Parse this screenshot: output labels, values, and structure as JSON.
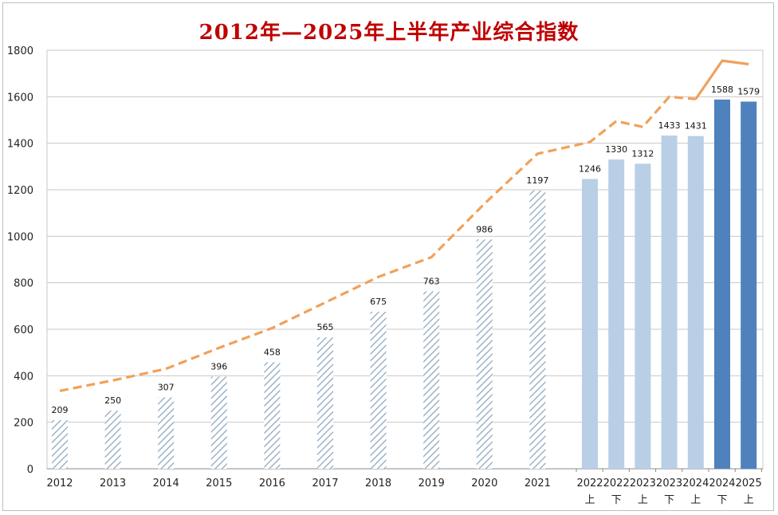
{
  "chart_data": {
    "type": "bar",
    "title": "2012年—2025年上半年产业综合指数",
    "ylim": [
      0,
      1800
    ],
    "y_ticks": [
      0,
      200,
      400,
      600,
      800,
      1000,
      1200,
      1400,
      1600,
      1800
    ],
    "grid": true,
    "categories": [
      {
        "year": "2012",
        "half": ""
      },
      {
        "year": "2013",
        "half": ""
      },
      {
        "year": "2014",
        "half": ""
      },
      {
        "year": "2015",
        "half": ""
      },
      {
        "year": "2016",
        "half": ""
      },
      {
        "year": "2017",
        "half": ""
      },
      {
        "year": "2018",
        "half": ""
      },
      {
        "year": "2019",
        "half": ""
      },
      {
        "year": "2020",
        "half": ""
      },
      {
        "year": "2021",
        "half": ""
      },
      {
        "year": "2022",
        "half": "上"
      },
      {
        "year": "2022",
        "half": "下"
      },
      {
        "year": "2023",
        "half": "上"
      },
      {
        "year": "2023",
        "half": "下"
      },
      {
        "year": "2024",
        "half": "上"
      },
      {
        "year": "2024",
        "half": "下"
      },
      {
        "year": "2025",
        "half": "上"
      }
    ],
    "bars": [
      209,
      250,
      307,
      396,
      458,
      565,
      675,
      763,
      986,
      1197,
      1246,
      1330,
      1312,
      1433,
      1431,
      1588,
      1579
    ],
    "bar_styles": [
      "hatched",
      "hatched",
      "hatched",
      "hatched",
      "hatched",
      "hatched",
      "hatched",
      "hatched",
      "hatched",
      "hatched",
      "light",
      "light",
      "light",
      "light",
      "light",
      "dark",
      "dark"
    ],
    "line": [
      335,
      380,
      430,
      520,
      605,
      715,
      825,
      910,
      1140,
      1355,
      1405,
      1495,
      1470,
      1600,
      1590,
      1755,
      1740
    ],
    "colors": {
      "hatch": "#8fa9bf",
      "light": "#b8cfe6",
      "dark": "#4f81bd",
      "line": "#f0a15a",
      "title": "#c00000",
      "grid": "#c8c8c8"
    }
  }
}
